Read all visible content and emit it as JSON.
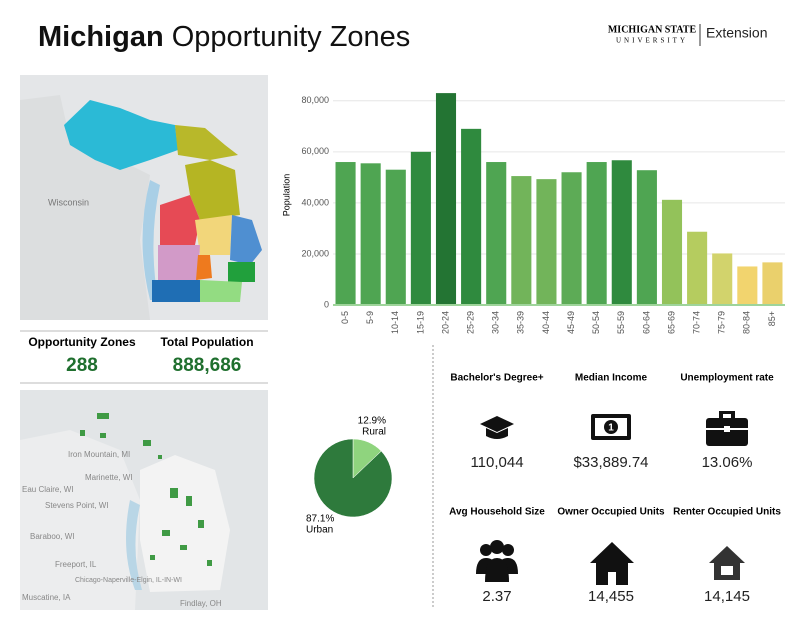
{
  "header": {
    "title_bold": "Michigan",
    "title_rest": "Opportunity Zones",
    "logo_top": "MICHIGAN STATE",
    "logo_bottom": "UNIVERSITY",
    "logo_right": "Extension"
  },
  "chart_data": [
    {
      "type": "bar",
      "y_label": "Population",
      "categories": [
        "0-5",
        "5-9",
        "10-14",
        "15-19",
        "20-24",
        "25-29",
        "30-34",
        "35-39",
        "40-44",
        "45-49",
        "50-54",
        "55-59",
        "60-64",
        "65-69",
        "70-74",
        "75-79",
        "80-84",
        "85+"
      ],
      "values": [
        56000,
        55500,
        53000,
        60000,
        83000,
        69000,
        56000,
        50500,
        49300,
        52000,
        56000,
        56700,
        52800,
        41200,
        28700,
        20200,
        15100,
        16700
      ],
      "colors": [
        "#4fa552",
        "#4fa552",
        "#4fa552",
        "#2f8a3e",
        "#237433",
        "#2f8a3e",
        "#4fa552",
        "#72b45a",
        "#72b45a",
        "#5dab56",
        "#4fa552",
        "#2f8a3e",
        "#4fa552",
        "#93c25a",
        "#b5cc5f",
        "#d2d36c",
        "#f2d46e",
        "#ead06c"
      ],
      "ylim": [
        0,
        85000
      ],
      "yticks": [
        0,
        {
          "value": 20000,
          "label": "20,000"
        },
        {
          "value": 40000,
          "label": "40,000"
        },
        {
          "value": 60000,
          "label": "60,000"
        },
        {
          "value": 80000,
          "label": "80,000"
        }
      ],
      "grid": true
    },
    {
      "type": "pie",
      "categories": [
        "Rural",
        "Urban"
      ],
      "values": [
        12.9,
        87.1
      ],
      "value_labels": [
        "12.9%",
        "87.1%"
      ],
      "colors": [
        "#8fd47e",
        "#2e7a3c"
      ]
    }
  ],
  "summary": [
    {
      "label": "Opportunity Zones",
      "value": "288"
    },
    {
      "label": "Total Population",
      "value": "888,686"
    }
  ],
  "indicators": [
    {
      "label": "Bachelor's Degree+",
      "value": "110,044"
    },
    {
      "label": "Median Income",
      "value": "$33,889.74"
    },
    {
      "label": "Unemployment rate",
      "value": "13.06%"
    },
    {
      "label": "Avg Household Size",
      "value": "2.37"
    },
    {
      "label": "Owner Occupied Units",
      "value": "14,455"
    },
    {
      "label": "Renter Occupied Units",
      "value": "14,145"
    }
  ],
  "map_labels": [
    "Wisconsin",
    "Iron Mountain, MI",
    "Marinette, WI",
    "Eau Claire, WI",
    "Stevens Point, WI",
    "Baraboo, WI",
    "Freeport, IL",
    "Chicago-Naperville-Elgin, IL-IN-WI",
    "Muscatine, IA",
    "Findlay, OH"
  ]
}
